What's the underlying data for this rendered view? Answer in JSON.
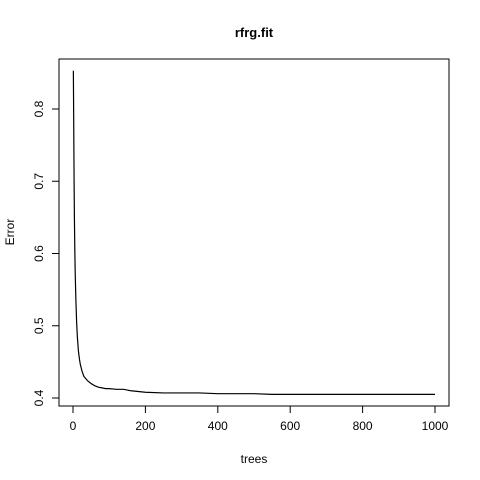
{
  "chart_data": {
    "type": "line",
    "title": "rfrg.fit",
    "xlabel": "trees",
    "ylabel": "Error",
    "xlim": [
      1,
      1000
    ],
    "ylim": [
      0.4,
      0.85
    ],
    "x_ticks": [
      0,
      200,
      400,
      600,
      800,
      1000
    ],
    "y_ticks": [
      0.4,
      0.5,
      0.6,
      0.7,
      0.8
    ],
    "grid": false,
    "legend": "none",
    "series": [
      {
        "color": "#000000",
        "x": [
          1,
          2,
          3,
          4,
          5,
          6,
          8,
          10,
          12,
          15,
          18,
          20,
          25,
          30,
          35,
          40,
          50,
          60,
          70,
          80,
          90,
          100,
          120,
          140,
          160,
          180,
          200,
          250,
          300,
          350,
          400,
          450,
          500,
          550,
          600,
          700,
          800,
          900,
          1000
        ],
        "y": [
          0.853,
          0.78,
          0.7,
          0.645,
          0.605,
          0.575,
          0.535,
          0.505,
          0.485,
          0.465,
          0.453,
          0.447,
          0.437,
          0.43,
          0.427,
          0.424,
          0.42,
          0.417,
          0.415,
          0.414,
          0.413,
          0.413,
          0.412,
          0.412,
          0.41,
          0.409,
          0.408,
          0.407,
          0.407,
          0.407,
          0.406,
          0.406,
          0.406,
          0.405,
          0.405,
          0.405,
          0.405,
          0.405,
          0.405
        ]
      }
    ]
  }
}
